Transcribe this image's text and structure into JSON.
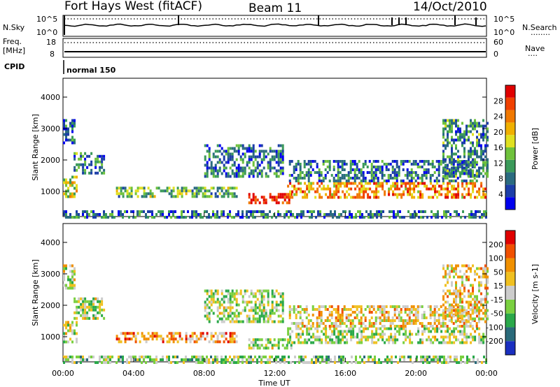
{
  "header": {
    "radar": "Fort Hays West (fitACF)",
    "beam": "Beam 11",
    "date": "14/Oct/2010"
  },
  "panels": {
    "nsky": {
      "label": "N.Sky",
      "ticks_left": [
        "10^5",
        "10^0"
      ],
      "ticks_right": [
        "10^5",
        "10^0"
      ],
      "right_label": "N.Search",
      "right_legend": "........"
    },
    "freq": {
      "label_lines": [
        "Freq.",
        "[MHz]"
      ],
      "ticks_left": [
        "18",
        "8"
      ],
      "ticks_right": [
        "60",
        "0"
      ],
      "right_label": "Nave",
      "right_legend": "...."
    },
    "cpid": {
      "label": "CPID",
      "value": "normal 150"
    }
  },
  "chart_data": [
    {
      "type": "heatmap",
      "panel": "power",
      "xlabel": "",
      "ylabel": "Slant Range [km]",
      "y_ticks": [
        1000,
        2000,
        3000,
        4000
      ],
      "ylim": [
        200,
        4600
      ],
      "xlim": [
        0,
        24
      ],
      "colorbar": {
        "label": "Power [dB]",
        "ticks": [
          4,
          8,
          12,
          16,
          20,
          24,
          28
        ],
        "range": [
          0,
          32
        ],
        "colors": [
          "#0000ee",
          "#1c3ea8",
          "#2b6b80",
          "#3b9a5a",
          "#6fc23c",
          "#e0e020",
          "#f0b000",
          "#f07800",
          "#f04000",
          "#e00000"
        ]
      },
      "regions": [
        {
          "t0": 0.0,
          "t1": 0.8,
          "r0": 800,
          "r1": 1500,
          "level": 0.55
        },
        {
          "t0": 0.6,
          "t1": 2.3,
          "r0": 1600,
          "r1": 2250,
          "level": 0.3
        },
        {
          "t0": 0.0,
          "t1": 0.7,
          "r0": 2500,
          "r1": 3300,
          "level": 0.2
        },
        {
          "t0": 3.0,
          "t1": 9.8,
          "r0": 850,
          "r1": 1150,
          "level": 0.4
        },
        {
          "t0": 8.0,
          "t1": 12.5,
          "r0": 1500,
          "r1": 2500,
          "level": 0.25
        },
        {
          "t0": 10.5,
          "t1": 12.9,
          "r0": 650,
          "r1": 950,
          "level": 0.95
        },
        {
          "t0": 12.7,
          "t1": 24.0,
          "r0": 850,
          "r1": 1300,
          "level": 0.7
        },
        {
          "t0": 12.8,
          "t1": 23.5,
          "r0": 1300,
          "r1": 2000,
          "level": 0.25
        },
        {
          "t0": 21.5,
          "t1": 24.0,
          "r0": 1500,
          "r1": 3300,
          "level": 0.3
        },
        {
          "t0": 0.0,
          "t1": 24.0,
          "r0": 200,
          "r1": 400,
          "level": 0.25
        }
      ]
    },
    {
      "type": "heatmap",
      "panel": "velocity",
      "xlabel": "Time UT",
      "ylabel": "Slant Range [km]",
      "x_ticks": [
        "00:00",
        "04:00",
        "08:00",
        "12:00",
        "16:00",
        "20:00",
        "00:00"
      ],
      "y_ticks": [
        1000,
        2000,
        3000,
        4000
      ],
      "ylim": [
        200,
        4600
      ],
      "xlim": [
        0,
        24
      ],
      "colorbar": {
        "label": "Velocity [m s-1]",
        "ticks": [
          200,
          100,
          50,
          15,
          -15,
          -50,
          -100,
          -200
        ],
        "colors": [
          "#1a2fc0",
          "#2a6a7a",
          "#2aa84a",
          "#7ad040",
          "#cccccc",
          "#f0c020",
          "#f09000",
          "#f05000",
          "#e00000"
        ]
      },
      "regions": [
        {
          "t0": 0.0,
          "t1": 0.8,
          "r0": 800,
          "r1": 1500,
          "level": 0.5
        },
        {
          "t0": 0.6,
          "t1": 2.3,
          "r0": 1600,
          "r1": 2250,
          "level": 0.45
        },
        {
          "t0": 0.0,
          "t1": 0.7,
          "r0": 2500,
          "r1": 3300,
          "level": 0.5
        },
        {
          "t0": 3.0,
          "t1": 9.8,
          "r0": 850,
          "r1": 1150,
          "level": 0.7
        },
        {
          "t0": 8.0,
          "t1": 12.5,
          "r0": 1500,
          "r1": 2500,
          "level": 0.45
        },
        {
          "t0": 10.5,
          "t1": 12.9,
          "r0": 650,
          "r1": 950,
          "level": 0.45
        },
        {
          "t0": 12.7,
          "t1": 24.0,
          "r0": 850,
          "r1": 1300,
          "level": 0.45
        },
        {
          "t0": 12.8,
          "t1": 23.5,
          "r0": 1300,
          "r1": 2000,
          "level": 0.6
        },
        {
          "t0": 21.5,
          "t1": 24.0,
          "r0": 1500,
          "r1": 3300,
          "level": 0.6
        },
        {
          "t0": 0.0,
          "t1": 24.0,
          "r0": 200,
          "r1": 400,
          "level": 0.4
        }
      ]
    }
  ]
}
